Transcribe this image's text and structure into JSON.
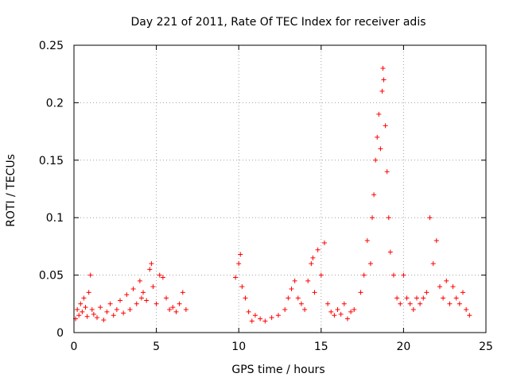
{
  "chart_data": {
    "type": "scatter",
    "title": "Day 221 of 2011, Rate Of TEC Index for receiver adis",
    "xlabel": "GPS time / hours",
    "ylabel": "ROTI / TECUs",
    "xlim": [
      0,
      25
    ],
    "ylim": [
      0,
      0.25
    ],
    "x_ticks": [
      0,
      5,
      10,
      15,
      20,
      25
    ],
    "y_ticks": [
      0,
      0.05,
      0.1,
      0.15,
      0.2,
      0.25
    ],
    "x_tick_labels": [
      "0",
      "5",
      "10",
      "15",
      "20",
      "25"
    ],
    "y_tick_labels": [
      "0",
      "0.05",
      "0.1",
      "0.15",
      "0.2",
      "0.25"
    ],
    "grid": true,
    "marker": "+",
    "color": "#ff0000",
    "series": [
      {
        "points": [
          [
            0.1,
            0.012
          ],
          [
            0.2,
            0.02
          ],
          [
            0.3,
            0.015
          ],
          [
            0.4,
            0.025
          ],
          [
            0.5,
            0.018
          ],
          [
            0.6,
            0.03
          ],
          [
            0.7,
            0.022
          ],
          [
            0.8,
            0.014
          ],
          [
            0.9,
            0.035
          ],
          [
            1.0,
            0.05
          ],
          [
            1.1,
            0.02
          ],
          [
            1.2,
            0.016
          ],
          [
            1.4,
            0.013
          ],
          [
            1.6,
            0.022
          ],
          [
            1.8,
            0.011
          ],
          [
            2.0,
            0.018
          ],
          [
            2.2,
            0.025
          ],
          [
            2.4,
            0.015
          ],
          [
            2.6,
            0.02
          ],
          [
            2.8,
            0.028
          ],
          [
            3.0,
            0.017
          ],
          [
            3.2,
            0.033
          ],
          [
            3.4,
            0.02
          ],
          [
            3.6,
            0.038
          ],
          [
            3.8,
            0.025
          ],
          [
            4.0,
            0.045
          ],
          [
            4.1,
            0.03
          ],
          [
            4.2,
            0.035
          ],
          [
            4.4,
            0.028
          ],
          [
            4.6,
            0.055
          ],
          [
            4.7,
            0.06
          ],
          [
            4.8,
            0.04
          ],
          [
            5.0,
            0.025
          ],
          [
            5.2,
            0.05
          ],
          [
            5.4,
            0.048
          ],
          [
            5.6,
            0.03
          ],
          [
            5.8,
            0.02
          ],
          [
            6.0,
            0.022
          ],
          [
            6.2,
            0.018
          ],
          [
            6.4,
            0.025
          ],
          [
            6.6,
            0.035
          ],
          [
            6.8,
            0.02
          ],
          [
            9.8,
            0.048
          ],
          [
            10.0,
            0.06
          ],
          [
            10.1,
            0.068
          ],
          [
            10.2,
            0.04
          ],
          [
            10.4,
            0.03
          ],
          [
            10.6,
            0.018
          ],
          [
            10.8,
            0.01
          ],
          [
            11.0,
            0.015
          ],
          [
            11.3,
            0.012
          ],
          [
            11.6,
            0.01
          ],
          [
            12.0,
            0.013
          ],
          [
            12.4,
            0.015
          ],
          [
            12.8,
            0.02
          ],
          [
            13.0,
            0.03
          ],
          [
            13.2,
            0.038
          ],
          [
            13.4,
            0.045
          ],
          [
            13.6,
            0.03
          ],
          [
            13.8,
            0.025
          ],
          [
            14.0,
            0.02
          ],
          [
            14.2,
            0.045
          ],
          [
            14.4,
            0.06
          ],
          [
            14.5,
            0.065
          ],
          [
            14.6,
            0.035
          ],
          [
            14.8,
            0.072
          ],
          [
            15.0,
            0.05
          ],
          [
            15.2,
            0.078
          ],
          [
            15.4,
            0.025
          ],
          [
            15.6,
            0.018
          ],
          [
            15.8,
            0.015
          ],
          [
            16.0,
            0.02
          ],
          [
            16.2,
            0.016
          ],
          [
            16.4,
            0.025
          ],
          [
            16.6,
            0.012
          ],
          [
            16.8,
            0.018
          ],
          [
            17.0,
            0.02
          ],
          [
            17.4,
            0.035
          ],
          [
            17.6,
            0.05
          ],
          [
            17.8,
            0.08
          ],
          [
            18.0,
            0.06
          ],
          [
            18.1,
            0.1
          ],
          [
            18.2,
            0.12
          ],
          [
            18.3,
            0.15
          ],
          [
            18.4,
            0.17
          ],
          [
            18.5,
            0.19
          ],
          [
            18.6,
            0.16
          ],
          [
            18.7,
            0.21
          ],
          [
            18.75,
            0.23
          ],
          [
            18.8,
            0.22
          ],
          [
            18.9,
            0.18
          ],
          [
            19.0,
            0.14
          ],
          [
            19.1,
            0.1
          ],
          [
            19.2,
            0.07
          ],
          [
            19.4,
            0.05
          ],
          [
            19.6,
            0.03
          ],
          [
            19.8,
            0.025
          ],
          [
            20.0,
            0.05
          ],
          [
            20.2,
            0.03
          ],
          [
            20.4,
            0.025
          ],
          [
            20.6,
            0.02
          ],
          [
            20.8,
            0.03
          ],
          [
            21.0,
            0.025
          ],
          [
            21.2,
            0.03
          ],
          [
            21.4,
            0.035
          ],
          [
            21.6,
            0.1
          ],
          [
            21.8,
            0.06
          ],
          [
            22.0,
            0.08
          ],
          [
            22.2,
            0.04
          ],
          [
            22.4,
            0.03
          ],
          [
            22.6,
            0.045
          ],
          [
            22.8,
            0.025
          ],
          [
            23.0,
            0.04
          ],
          [
            23.2,
            0.03
          ],
          [
            23.4,
            0.025
          ],
          [
            23.6,
            0.035
          ],
          [
            23.8,
            0.02
          ],
          [
            24.0,
            0.015
          ]
        ]
      }
    ]
  }
}
